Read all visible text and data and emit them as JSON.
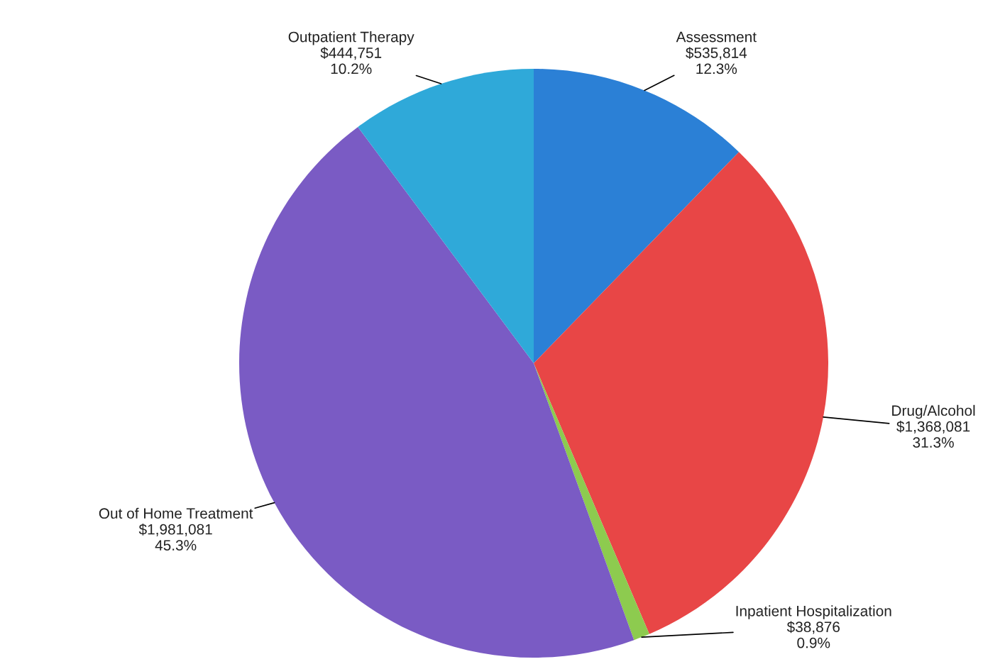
{
  "chart_data": {
    "type": "pie",
    "categories": [
      "Assessment",
      "Drug/Alcohol",
      "Inpatient Hospitalization",
      "Out of Home Treatment",
      "Outpatient Therapy"
    ],
    "values": [
      535814,
      1368081,
      38876,
      1981081,
      444751
    ],
    "value_labels": [
      "$535,814\n12.3%",
      "$1,368,081\n31.3%",
      "$38,876\n0.9%",
      "$1,981,081\n45.3%",
      "$444,751\n10.2%"
    ],
    "colors": [
      "#2b80d6",
      "#e84646",
      "#8dcb4f",
      "#7a5bc4",
      "#2fa9d9"
    ],
    "legend": false
  }
}
